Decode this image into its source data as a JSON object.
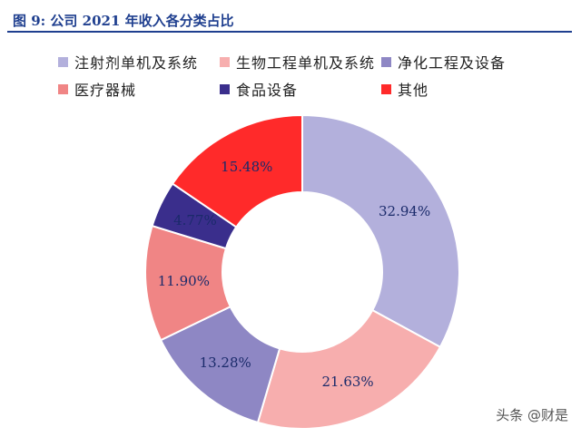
{
  "header": {
    "title": "图 9: 公司 2021 年收入各分类占比"
  },
  "watermark": "头条 @财是",
  "chart_data": {
    "type": "pie",
    "donut": true,
    "title": "图 9: 公司 2021 年收入各分类占比",
    "legend_position": "top",
    "slices": [
      {
        "label": "注射剂单机及系统",
        "value": 32.94,
        "value_label": "32.94%",
        "color": "#b3b0dc"
      },
      {
        "label": "生物工程单机及系统",
        "value": 21.63,
        "value_label": "21.63%",
        "color": "#f7aeae"
      },
      {
        "label": "净化工程及设备",
        "value": 13.28,
        "value_label": "13.28%",
        "color": "#8e87c4"
      },
      {
        "label": "医疗器械",
        "value": 11.9,
        "value_label": "11.90%",
        "color": "#f08585"
      },
      {
        "label": "食品设备",
        "value": 4.77,
        "value_label": "4.77%",
        "color": "#3a2e8c"
      },
      {
        "label": "其他",
        "value": 15.48,
        "value_label": "15.48%",
        "color": "#ff2a2a"
      }
    ]
  }
}
